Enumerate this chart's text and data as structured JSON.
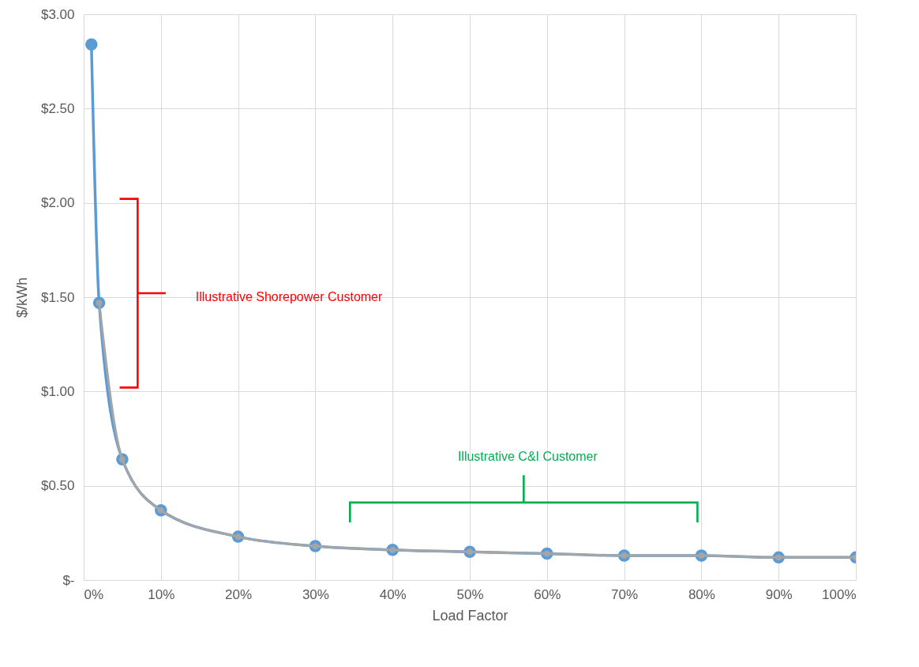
{
  "chart_data": {
    "type": "line",
    "xlabel": "Load Factor",
    "ylabel": "$/kWh",
    "xlim": [
      0,
      100
    ],
    "xticks": [
      {
        "value": 0,
        "label": "0%"
      },
      {
        "value": 10,
        "label": "10%"
      },
      {
        "value": 20,
        "label": "20%"
      },
      {
        "value": 30,
        "label": "30%"
      },
      {
        "value": 40,
        "label": "40%"
      },
      {
        "value": 50,
        "label": "50%"
      },
      {
        "value": 60,
        "label": "60%"
      },
      {
        "value": 70,
        "label": "70%"
      },
      {
        "value": 80,
        "label": "80%"
      },
      {
        "value": 90,
        "label": "90%"
      },
      {
        "value": 100,
        "label": "100%"
      }
    ],
    "ylim": [
      0,
      3
    ],
    "yticks": [
      {
        "value": 0,
        "label": "$-"
      },
      {
        "value": 0.5,
        "label": "$0.50"
      },
      {
        "value": 1,
        "label": "$1.00"
      },
      {
        "value": 1.5,
        "label": "$1.50"
      },
      {
        "value": 2,
        "label": "$2.00"
      },
      {
        "value": 2.5,
        "label": "$2.50"
      },
      {
        "value": 3,
        "label": "$3.00"
      }
    ],
    "series": [
      {
        "color": "#5b9bd5",
        "x": [
          1,
          2,
          5,
          10,
          20,
          30,
          40,
          50,
          60,
          70,
          80,
          90,
          100
        ],
        "values": [
          2.84,
          1.47,
          0.64,
          0.37,
          0.23,
          0.18,
          0.16,
          0.15,
          0.14,
          0.13,
          0.13,
          0.12,
          0.12
        ]
      },
      {
        "color": "#a5a5a5",
        "x": [
          2,
          5,
          10,
          20,
          30,
          40,
          50,
          60,
          70,
          80,
          90,
          100
        ],
        "values": [
          1.47,
          0.64,
          0.37,
          0.23,
          0.18,
          0.16,
          0.15,
          0.14,
          0.13,
          0.13,
          0.12,
          0.12
        ]
      }
    ],
    "annotations": [
      "Illustrative Shorepower Customer",
      "Illustrative C&I Customer"
    ],
    "grid": true,
    "marker": "circle"
  }
}
